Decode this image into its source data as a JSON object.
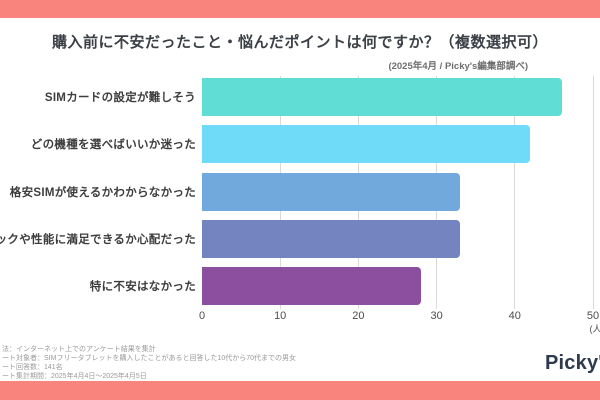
{
  "frame": {
    "accent_color": "#F9837D",
    "background_color": "#FFFFFF"
  },
  "header": {
    "title": "購入前に不安だったこと・悩んだポイントは何ですか？（複数選択可）",
    "source_note": "(2025年4月 / Picky's編集部調べ)"
  },
  "chart_data": {
    "type": "bar",
    "orientation": "horizontal",
    "title": "購入前に不安だったこと・悩んだポイントは何ですか？（複数選択可）",
    "categories": [
      "SIMカードの設定が難しそう",
      "どの機種を選べばいいか迷った",
      "格安SIMが使えるかわからなかった",
      "ックや性能に満足できるか心配だった",
      "特に不安はなかった"
    ],
    "values": [
      46,
      42,
      33,
      33,
      28
    ],
    "bar_colors": [
      "#60DED5",
      "#6FDBF8",
      "#72A9DC",
      "#7384C0",
      "#8C4FA0"
    ],
    "xlim": [
      0,
      50
    ],
    "x_ticks": [
      "0",
      "10",
      "20",
      "30",
      "40",
      "50"
    ],
    "x_unit": "(人)",
    "xlabel": "",
    "ylabel": "",
    "grid": true,
    "gridline_color": "#D9D9D9",
    "legend": "none"
  },
  "footer": {
    "notes": [
      "法：インターネット上でのアンケート結果を集計",
      "ート対象者：SIMフリータブレットを購入したことがあると回答した10代から70代までの男女",
      "ート回答数：141名",
      "ート集計期間：2025年4月4日～2025年4月5日"
    ],
    "logo_text": "Picky's"
  }
}
